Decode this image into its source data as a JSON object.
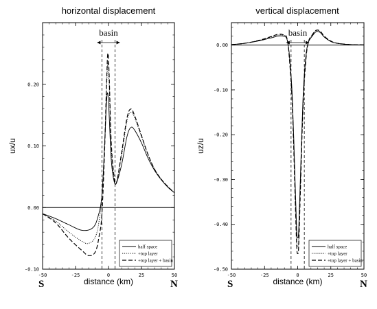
{
  "chart_data": [
    {
      "type": "line",
      "title": "horizontal displacement",
      "xlabel": "distance (km)",
      "ylabel": "ux/u",
      "xlim": [
        -50,
        50
      ],
      "ylim": [
        -0.1,
        0.3
      ],
      "x_ticks": [
        "-50",
        "-25",
        "0",
        "25",
        "50"
      ],
      "y_ticks": [
        "-0.10",
        "0.00",
        "0.10",
        "0.20"
      ],
      "y_tick_values": [
        -0.1,
        0.0,
        0.1,
        0.2
      ],
      "side_labels": {
        "left": "S",
        "right": "N"
      },
      "annotation": {
        "text": "basin",
        "x_range": [
          -5,
          5
        ]
      },
      "zero_line": true,
      "legend": {
        "placement": "bottom-right"
      },
      "series": [
        {
          "name": "half space",
          "style": "solid",
          "points": [
            [
              -50,
              -0.01
            ],
            [
              -40,
              -0.018
            ],
            [
              -30,
              -0.028
            ],
            [
              -20,
              -0.037
            ],
            [
              -12,
              -0.033
            ],
            [
              -8,
              -0.015
            ],
            [
              -5,
              0.02
            ],
            [
              -3,
              0.1
            ],
            [
              -1.5,
              0.17
            ],
            [
              -0.5,
              0.185
            ],
            [
              0.5,
              0.15
            ],
            [
              2,
              0.08
            ],
            [
              4,
              0.045
            ],
            [
              6,
              0.04
            ],
            [
              10,
              0.07
            ],
            [
              14,
              0.115
            ],
            [
              17,
              0.13
            ],
            [
              20,
              0.125
            ],
            [
              25,
              0.105
            ],
            [
              30,
              0.08
            ],
            [
              35,
              0.06
            ],
            [
              40,
              0.045
            ],
            [
              45,
              0.033
            ],
            [
              50,
              0.024
            ]
          ]
        },
        {
          "name": "+top layer",
          "style": "dotted",
          "points": [
            [
              -50,
              -0.01
            ],
            [
              -40,
              -0.022
            ],
            [
              -30,
              -0.04
            ],
            [
              -20,
              -0.055
            ],
            [
              -15,
              -0.058
            ],
            [
              -10,
              -0.048
            ],
            [
              -7,
              -0.02
            ],
            [
              -5,
              0.02
            ],
            [
              -3,
              0.1
            ],
            [
              -1.5,
              0.19
            ],
            [
              -0.5,
              0.235
            ],
            [
              0.5,
              0.2
            ],
            [
              2,
              0.1
            ],
            [
              4,
              0.05
            ],
            [
              6,
              0.04
            ],
            [
              10,
              0.085
            ],
            [
              14,
              0.14
            ],
            [
              17,
              0.155
            ],
            [
              20,
              0.145
            ],
            [
              25,
              0.115
            ],
            [
              30,
              0.085
            ],
            [
              35,
              0.062
            ],
            [
              40,
              0.046
            ],
            [
              45,
              0.034
            ],
            [
              50,
              0.024
            ]
          ]
        },
        {
          "name": "+top layer + basin",
          "style": "dashed",
          "points": [
            [
              -50,
              -0.01
            ],
            [
              -40,
              -0.025
            ],
            [
              -30,
              -0.05
            ],
            [
              -20,
              -0.07
            ],
            [
              -15,
              -0.078
            ],
            [
              -10,
              -0.072
            ],
            [
              -7,
              -0.045
            ],
            [
              -5,
              -0.01
            ],
            [
              -3,
              0.09
            ],
            [
              -1.5,
              0.2
            ],
            [
              -0.5,
              0.25
            ],
            [
              0.5,
              0.215
            ],
            [
              2,
              0.11
            ],
            [
              4,
              0.055
            ],
            [
              6,
              0.04
            ],
            [
              10,
              0.09
            ],
            [
              14,
              0.145
            ],
            [
              17,
              0.16
            ],
            [
              20,
              0.148
            ],
            [
              25,
              0.117
            ],
            [
              30,
              0.086
            ],
            [
              35,
              0.062
            ],
            [
              40,
              0.046
            ],
            [
              45,
              0.034
            ],
            [
              50,
              0.024
            ]
          ]
        }
      ]
    },
    {
      "type": "line",
      "title": "vertical displacement",
      "xlabel": "distance (km)",
      "ylabel": "uz/u",
      "xlim": [
        -50,
        50
      ],
      "ylim": [
        -0.5,
        0.05
      ],
      "x_ticks": [
        "-50",
        "-25",
        "0",
        "25",
        "50"
      ],
      "y_ticks": [
        "0.00",
        "-0.10",
        "-0.20",
        "-0.30",
        "-0.40",
        "-0.50"
      ],
      "y_tick_values": [
        0.0,
        -0.1,
        -0.2,
        -0.3,
        -0.4,
        -0.5
      ],
      "side_labels": {
        "left": "S",
        "right": "N"
      },
      "annotation": {
        "text": "basin",
        "x_range": [
          -5,
          5
        ]
      },
      "zero_line": true,
      "legend": {
        "placement": "bottom-right"
      },
      "series": [
        {
          "name": "half space",
          "style": "solid",
          "points": [
            [
              -50,
              0.001
            ],
            [
              -40,
              0.004
            ],
            [
              -30,
              0.009
            ],
            [
              -20,
              0.016
            ],
            [
              -15,
              0.02
            ],
            [
              -11,
              0.02
            ],
            [
              -8,
              0.012
            ],
            [
              -6,
              -0.03
            ],
            [
              -4,
              -0.12
            ],
            [
              -2,
              -0.3
            ],
            [
              -0.8,
              -0.41
            ],
            [
              0,
              -0.43
            ],
            [
              0.8,
              -0.41
            ],
            [
              2,
              -0.3
            ],
            [
              4,
              -0.12
            ],
            [
              6,
              -0.03
            ],
            [
              8,
              0.005
            ],
            [
              11,
              0.02
            ],
            [
              14,
              0.03
            ],
            [
              17,
              0.028
            ],
            [
              20,
              0.018
            ],
            [
              25,
              0.008
            ],
            [
              30,
              0.004
            ],
            [
              40,
              0.001
            ],
            [
              50,
              0.0005
            ]
          ]
        },
        {
          "name": "+top layer",
          "style": "dotted",
          "points": [
            [
              -50,
              0.001
            ],
            [
              -40,
              0.004
            ],
            [
              -30,
              0.01
            ],
            [
              -20,
              0.018
            ],
            [
              -15,
              0.022
            ],
            [
              -11,
              0.022
            ],
            [
              -8,
              0.013
            ],
            [
              -6,
              -0.035
            ],
            [
              -4,
              -0.13
            ],
            [
              -2,
              -0.32
            ],
            [
              -0.8,
              -0.43
            ],
            [
              0,
              -0.45
            ],
            [
              0.8,
              -0.43
            ],
            [
              2,
              -0.32
            ],
            [
              4,
              -0.13
            ],
            [
              6,
              -0.035
            ],
            [
              8,
              0.006
            ],
            [
              11,
              0.022
            ],
            [
              14,
              0.032
            ],
            [
              17,
              0.03
            ],
            [
              20,
              0.019
            ],
            [
              25,
              0.009
            ],
            [
              30,
              0.004
            ],
            [
              40,
              0.001
            ],
            [
              50,
              0.0005
            ]
          ]
        },
        {
          "name": "+top layer + basin",
          "style": "dashed",
          "points": [
            [
              -50,
              0.001
            ],
            [
              -40,
              0.004
            ],
            [
              -30,
              0.01
            ],
            [
              -20,
              0.019
            ],
            [
              -15,
              0.024
            ],
            [
              -11,
              0.023
            ],
            [
              -8,
              0.014
            ],
            [
              -6,
              -0.04
            ],
            [
              -4,
              -0.14
            ],
            [
              -2,
              -0.33
            ],
            [
              -0.8,
              -0.445
            ],
            [
              0,
              -0.465
            ],
            [
              0.8,
              -0.445
            ],
            [
              2,
              -0.33
            ],
            [
              4,
              -0.14
            ],
            [
              6,
              -0.04
            ],
            [
              8,
              0.006
            ],
            [
              11,
              0.023
            ],
            [
              14,
              0.033
            ],
            [
              17,
              0.031
            ],
            [
              20,
              0.02
            ],
            [
              25,
              0.009
            ],
            [
              30,
              0.004
            ],
            [
              40,
              0.001
            ],
            [
              50,
              0.0005
            ]
          ]
        }
      ]
    }
  ]
}
